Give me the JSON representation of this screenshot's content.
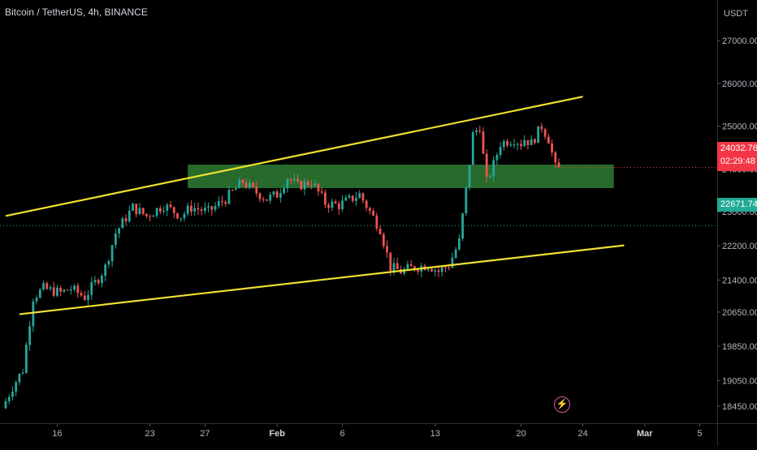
{
  "header": {
    "title": "Bitcoin / TetherUS, 4h, BINANCE",
    "unit": "USDT"
  },
  "colors": {
    "up": "#26a69a",
    "down": "#ef5350",
    "trend": "#f0e130",
    "zone": "#2e7d32",
    "bg": "#000000",
    "axis_text": "#b2b5be",
    "last_price": "#f23645",
    "level": "#22ab94"
  },
  "chart_data": {
    "type": "candlestick",
    "price_scale": {
      "ylim": [
        18050,
        27950
      ],
      "ticks": [
        27000,
        26000,
        25000,
        24000,
        23000,
        22200,
        21400,
        20650,
        19850,
        19050,
        18450
      ],
      "tick_labels": [
        "27000.00",
        "26000.00",
        "25000.00",
        "24000.00",
        "23000.00",
        "22200.00",
        "21400.00",
        "20650.00",
        "19850.00",
        "19050.00",
        "18450.00"
      ]
    },
    "time_axis": {
      "labels": [
        "16",
        "23",
        "27",
        "Feb",
        "6",
        "13",
        "20",
        "24",
        "Mar",
        "5"
      ],
      "bar_index": [
        15,
        42,
        58,
        79,
        98,
        125,
        150,
        168,
        186,
        202
      ],
      "bold": [
        "Feb",
        "Mar"
      ]
    },
    "last_price": {
      "value": 24032.76,
      "label": "24032.76",
      "countdown": "02:29:48"
    },
    "horizontal_level": {
      "value": 22671.74,
      "label": "22671.74"
    },
    "zone": {
      "from_price": 23550,
      "to_price": 24100,
      "start_bar": 53,
      "end_bar": 177
    },
    "trendlines": [
      {
        "name": "upper",
        "p1": {
          "bar": 0,
          "price": 22900
        },
        "p2": {
          "bar": 168,
          "price": 25690
        }
      },
      {
        "name": "lower",
        "p1": {
          "bar": 4,
          "price": 20600
        },
        "p2": {
          "bar": 180,
          "price": 22210
        }
      }
    ],
    "anchors": [
      [
        0,
        18400
      ],
      [
        3,
        18900
      ],
      [
        6,
        19300
      ],
      [
        9,
        21000
      ],
      [
        12,
        21200
      ],
      [
        17,
        21100
      ],
      [
        20,
        21200
      ],
      [
        24,
        21000
      ],
      [
        28,
        21450
      ],
      [
        30,
        21700
      ],
      [
        33,
        22500
      ],
      [
        38,
        23100
      ],
      [
        42,
        22900
      ],
      [
        47,
        23150
      ],
      [
        52,
        22900
      ],
      [
        55,
        23100
      ],
      [
        60,
        23000
      ],
      [
        65,
        23300
      ],
      [
        70,
        23700
      ],
      [
        73,
        23500
      ],
      [
        77,
        23300
      ],
      [
        80,
        23400
      ],
      [
        83,
        23800
      ],
      [
        86,
        23600
      ],
      [
        90,
        23700
      ],
      [
        94,
        23200
      ],
      [
        98,
        23150
      ],
      [
        104,
        23400
      ],
      [
        107,
        23000
      ],
      [
        110,
        22600
      ],
      [
        113,
        21700
      ],
      [
        116,
        21600
      ],
      [
        120,
        21700
      ],
      [
        124,
        21750
      ],
      [
        127,
        21600
      ],
      [
        130,
        21750
      ],
      [
        133,
        22300
      ],
      [
        135,
        23500
      ],
      [
        137,
        24800
      ],
      [
        139,
        25000
      ],
      [
        140,
        24300
      ],
      [
        141,
        23700
      ],
      [
        143,
        24100
      ],
      [
        145,
        24600
      ],
      [
        149,
        24700
      ],
      [
        151,
        24600
      ],
      [
        152,
        24700
      ],
      [
        154,
        24600
      ],
      [
        157,
        25000
      ],
      [
        159,
        24700
      ],
      [
        161,
        24032.76
      ]
    ],
    "candle_count": 162
  }
}
